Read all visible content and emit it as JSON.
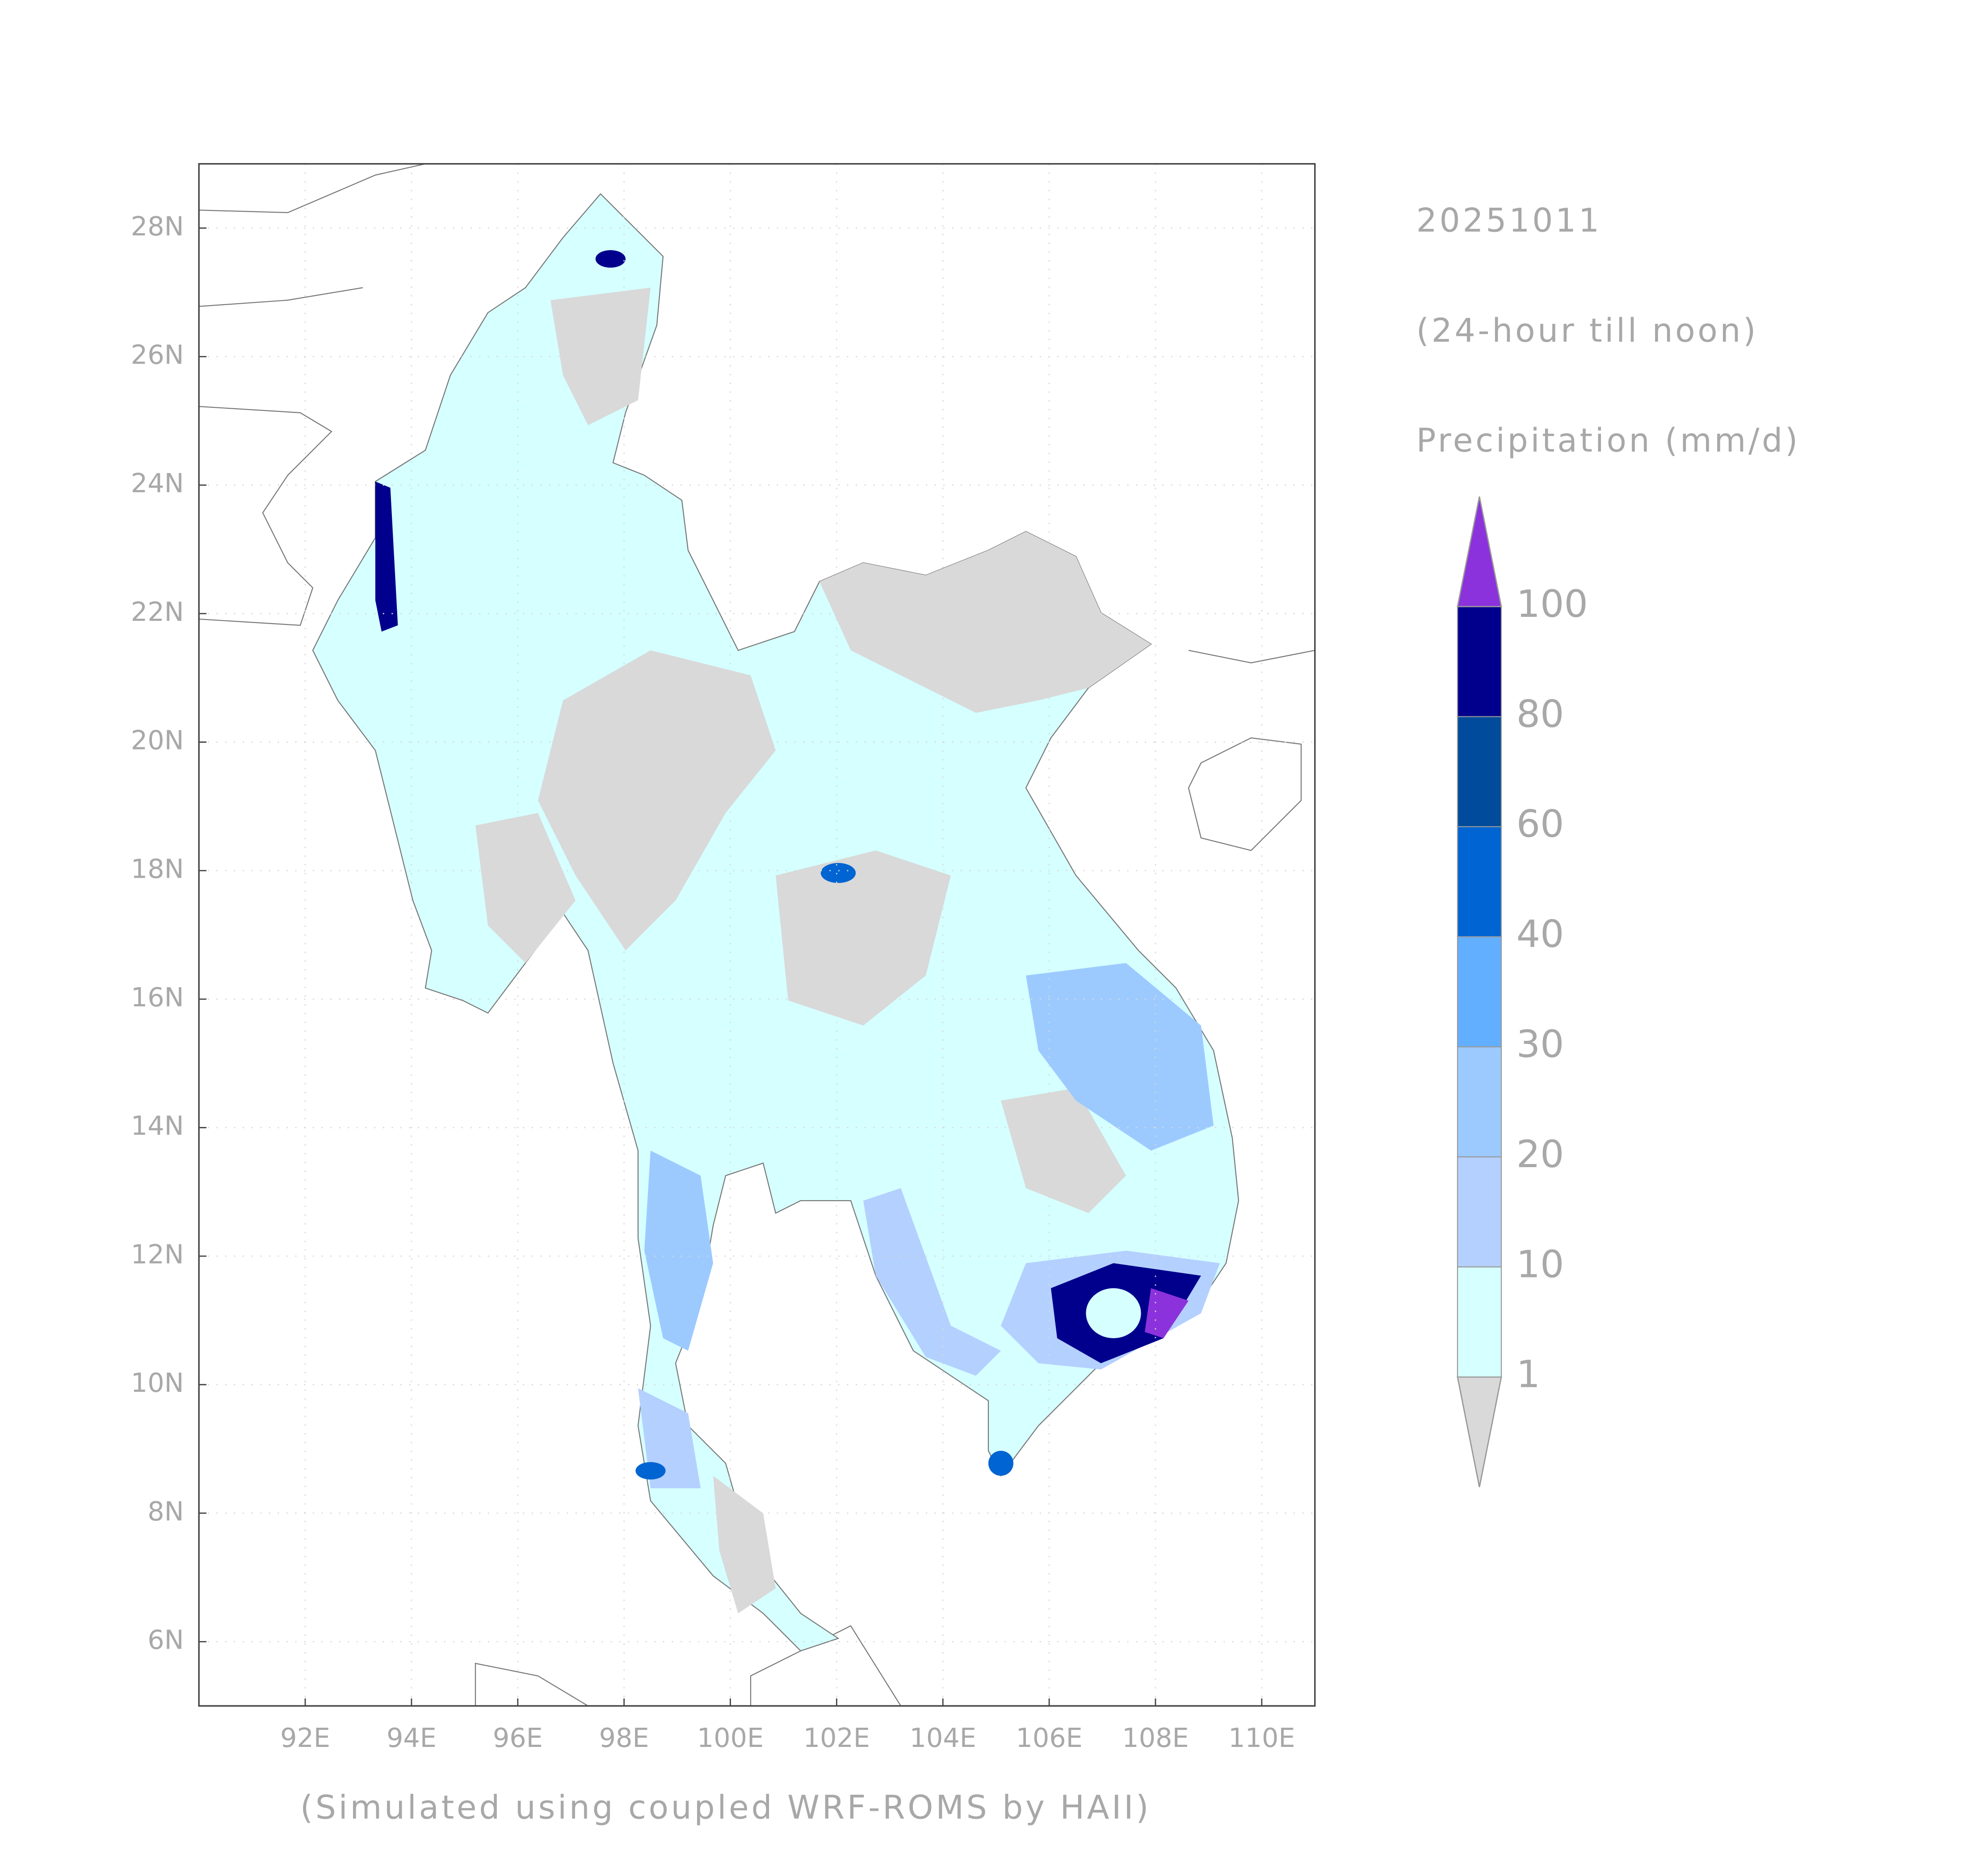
{
  "map": {
    "xlim": [
      90,
      111
    ],
    "ylim": [
      5,
      29
    ],
    "xticks": [
      {
        "value": 92,
        "label": "92E"
      },
      {
        "value": 94,
        "label": "94E"
      },
      {
        "value": 96,
        "label": "96E"
      },
      {
        "value": 98,
        "label": "98E"
      },
      {
        "value": 100,
        "label": "100E"
      },
      {
        "value": 102,
        "label": "102E"
      },
      {
        "value": 104,
        "label": "104E"
      },
      {
        "value": 106,
        "label": "106E"
      },
      {
        "value": 108,
        "label": "108E"
      },
      {
        "value": 110,
        "label": "110E"
      }
    ],
    "yticks": [
      {
        "value": 6,
        "label": "6N"
      },
      {
        "value": 8,
        "label": "8N"
      },
      {
        "value": 10,
        "label": "10N"
      },
      {
        "value": 12,
        "label": "12N"
      },
      {
        "value": 14,
        "label": "14N"
      },
      {
        "value": 16,
        "label": "16N"
      },
      {
        "value": 18,
        "label": "18N"
      },
      {
        "value": 20,
        "label": "20N"
      },
      {
        "value": 22,
        "label": "22N"
      },
      {
        "value": 24,
        "label": "24N"
      },
      {
        "value": 26,
        "label": "26N"
      },
      {
        "value": 28,
        "label": "28N"
      }
    ],
    "grid": true,
    "date": "20251011",
    "subtitle": "(24-hour till noon)",
    "variable": "Precipitation (mm/d)",
    "footer": "(Simulated using coupled WRF-ROMS by HAII)",
    "colorbar": {
      "levels": [
        1,
        10,
        20,
        30,
        40,
        60,
        80,
        100
      ],
      "colors": [
        "#d9d9d9",
        "#d6ffff",
        "#b4d0ff",
        "#9ccaff",
        "#63afff",
        "#0064d2",
        "#004b9b",
        "#00008c",
        "#8c32dc"
      ]
    }
  }
}
